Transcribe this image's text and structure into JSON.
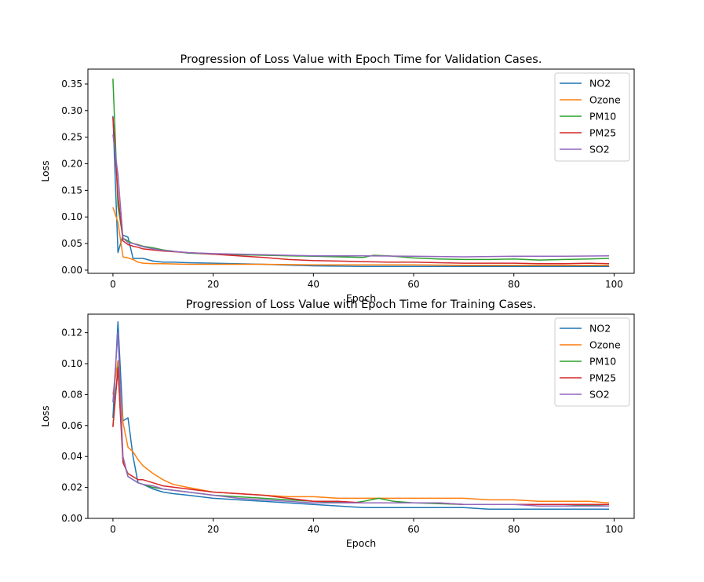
{
  "colors": {
    "NO2": "#1f77b4",
    "Ozone": "#ff7f0e",
    "PM10": "#2ca02c",
    "PM25": "#d62728",
    "SO2": "#9467bd"
  },
  "chart_data": [
    {
      "type": "line",
      "title": "Progression of Loss Value with Epoch Time for Validation Cases.",
      "xlabel": "Epoch",
      "ylabel": "Loss",
      "xlim": [
        -5,
        104
      ],
      "ylim": [
        -0.006,
        0.378
      ],
      "xticks": [
        0,
        20,
        40,
        60,
        80,
        100
      ],
      "xtick_labels": [
        "0",
        "20",
        "40",
        "60",
        "80",
        "100"
      ],
      "yticks": [
        0.0,
        0.05,
        0.1,
        0.15,
        0.2,
        0.25,
        0.3,
        0.35
      ],
      "ytick_labels": [
        "0.00",
        "0.05",
        "0.10",
        "0.15",
        "0.20",
        "0.25",
        "0.30",
        "0.35"
      ],
      "grid": false,
      "legend_position": "top-right",
      "series": [
        {
          "name": "NO2",
          "color": "#1f77b4",
          "x": [
            0,
            1,
            2,
            3,
            4,
            5,
            6,
            8,
            10,
            12,
            15,
            20,
            30,
            40,
            50,
            60,
            70,
            80,
            90,
            99
          ],
          "y": [
            0.29,
            0.033,
            0.066,
            0.062,
            0.022,
            0.022,
            0.022,
            0.017,
            0.015,
            0.015,
            0.014,
            0.013,
            0.011,
            0.008,
            0.007,
            0.007,
            0.007,
            0.007,
            0.007,
            0.007
          ]
        },
        {
          "name": "Ozone",
          "color": "#ff7f0e",
          "x": [
            0,
            1,
            2,
            3,
            4,
            5,
            6,
            8,
            10,
            15,
            20,
            30,
            40,
            50,
            60,
            70,
            80,
            90,
            99
          ],
          "y": [
            0.118,
            0.09,
            0.025,
            0.023,
            0.02,
            0.015,
            0.013,
            0.012,
            0.012,
            0.011,
            0.011,
            0.011,
            0.01,
            0.01,
            0.01,
            0.009,
            0.009,
            0.009,
            0.009
          ]
        },
        {
          "name": "PM10",
          "color": "#2ca02c",
          "x": [
            0,
            1,
            2,
            3,
            4,
            5,
            6,
            8,
            10,
            15,
            20,
            30,
            40,
            45,
            50,
            52,
            55,
            60,
            65,
            70,
            75,
            80,
            85,
            90,
            95,
            99
          ],
          "y": [
            0.36,
            0.12,
            0.06,
            0.055,
            0.05,
            0.048,
            0.045,
            0.042,
            0.038,
            0.032,
            0.03,
            0.028,
            0.026,
            0.025,
            0.024,
            0.028,
            0.027,
            0.023,
            0.021,
            0.02,
            0.02,
            0.021,
            0.019,
            0.02,
            0.021,
            0.022
          ]
        },
        {
          "name": "PM25",
          "color": "#d62728",
          "x": [
            0,
            1,
            2,
            3,
            4,
            5,
            6,
            8,
            10,
            15,
            20,
            25,
            30,
            35,
            40,
            45,
            50,
            55,
            60,
            65,
            70,
            75,
            80,
            85,
            90,
            95,
            99
          ],
          "y": [
            0.288,
            0.14,
            0.055,
            0.048,
            0.045,
            0.043,
            0.04,
            0.038,
            0.036,
            0.033,
            0.03,
            0.027,
            0.024,
            0.02,
            0.018,
            0.017,
            0.016,
            0.015,
            0.015,
            0.014,
            0.013,
            0.013,
            0.013,
            0.012,
            0.012,
            0.013,
            0.012
          ]
        },
        {
          "name": "SO2",
          "color": "#9467bd",
          "x": [
            0,
            1,
            2,
            3,
            4,
            5,
            6,
            8,
            10,
            15,
            20,
            30,
            40,
            50,
            60,
            70,
            80,
            90,
            99
          ],
          "y": [
            0.255,
            0.18,
            0.06,
            0.052,
            0.05,
            0.047,
            0.044,
            0.04,
            0.037,
            0.033,
            0.031,
            0.029,
            0.027,
            0.027,
            0.026,
            0.025,
            0.026,
            0.026,
            0.027
          ]
        }
      ]
    },
    {
      "type": "line",
      "title": "Progression of Loss Value with Epoch Time for Training Cases.",
      "xlabel": "Epoch",
      "ylabel": "Loss",
      "xlim": [
        -5,
        104
      ],
      "ylim": [
        0.0,
        0.132
      ],
      "xticks": [
        0,
        20,
        40,
        60,
        80,
        100
      ],
      "xtick_labels": [
        "0",
        "20",
        "40",
        "60",
        "80",
        "100"
      ],
      "yticks": [
        0.0,
        0.02,
        0.04,
        0.06,
        0.08,
        0.1,
        0.12
      ],
      "ytick_labels": [
        "0.00",
        "0.02",
        "0.04",
        "0.06",
        "0.08",
        "0.10",
        "0.12"
      ],
      "grid": false,
      "legend_position": "top-right",
      "series": [
        {
          "name": "NO2",
          "color": "#1f77b4",
          "x": [
            0,
            1,
            2,
            3,
            4,
            5,
            6,
            8,
            10,
            12,
            15,
            20,
            25,
            30,
            35,
            40,
            45,
            50,
            55,
            60,
            65,
            70,
            75,
            80,
            85,
            90,
            95,
            99
          ],
          "y": [
            0.065,
            0.127,
            0.063,
            0.065,
            0.04,
            0.023,
            0.022,
            0.019,
            0.017,
            0.016,
            0.015,
            0.013,
            0.012,
            0.011,
            0.01,
            0.009,
            0.008,
            0.007,
            0.007,
            0.007,
            0.007,
            0.007,
            0.006,
            0.006,
            0.006,
            0.006,
            0.006,
            0.006
          ]
        },
        {
          "name": "Ozone",
          "color": "#ff7f0e",
          "x": [
            0,
            1,
            2,
            3,
            4,
            5,
            6,
            8,
            10,
            12,
            15,
            20,
            25,
            30,
            35,
            40,
            45,
            50,
            55,
            60,
            65,
            70,
            75,
            80,
            85,
            90,
            95,
            99
          ],
          "y": [
            0.08,
            0.102,
            0.062,
            0.046,
            0.043,
            0.038,
            0.034,
            0.029,
            0.025,
            0.022,
            0.02,
            0.017,
            0.016,
            0.015,
            0.014,
            0.014,
            0.013,
            0.013,
            0.013,
            0.013,
            0.013,
            0.013,
            0.012,
            0.012,
            0.011,
            0.011,
            0.011,
            0.01
          ]
        },
        {
          "name": "PM10",
          "color": "#2ca02c",
          "x": [
            0,
            1,
            2,
            3,
            4,
            5,
            6,
            8,
            10,
            15,
            20,
            30,
            40,
            48,
            50,
            53,
            56,
            60,
            70,
            80,
            90,
            99
          ],
          "y": [
            0.06,
            0.098,
            0.038,
            0.027,
            0.025,
            0.023,
            0.022,
            0.02,
            0.019,
            0.017,
            0.015,
            0.013,
            0.011,
            0.01,
            0.011,
            0.013,
            0.011,
            0.01,
            0.009,
            0.009,
            0.009,
            0.008
          ]
        },
        {
          "name": "PM25",
          "color": "#d62728",
          "x": [
            0,
            1,
            2,
            3,
            4,
            5,
            6,
            8,
            10,
            15,
            20,
            25,
            30,
            35,
            40,
            45,
            50,
            55,
            60,
            65,
            70,
            75,
            80,
            85,
            90,
            95,
            99
          ],
          "y": [
            0.059,
            0.097,
            0.036,
            0.029,
            0.027,
            0.025,
            0.025,
            0.023,
            0.021,
            0.019,
            0.017,
            0.016,
            0.015,
            0.013,
            0.011,
            0.011,
            0.01,
            0.01,
            0.01,
            0.01,
            0.009,
            0.009,
            0.009,
            0.009,
            0.009,
            0.009,
            0.009
          ]
        },
        {
          "name": "SO2",
          "color": "#9467bd",
          "x": [
            0,
            1,
            2,
            3,
            4,
            5,
            6,
            8,
            10,
            15,
            20,
            25,
            30,
            35,
            40,
            45,
            50,
            55,
            60,
            65,
            70,
            75,
            80,
            85,
            90,
            95,
            99
          ],
          "y": [
            0.075,
            0.12,
            0.04,
            0.027,
            0.025,
            0.023,
            0.022,
            0.021,
            0.019,
            0.017,
            0.015,
            0.013,
            0.012,
            0.011,
            0.01,
            0.01,
            0.01,
            0.01,
            0.01,
            0.01,
            0.009,
            0.009,
            0.009,
            0.008,
            0.008,
            0.008,
            0.008
          ]
        }
      ]
    }
  ]
}
